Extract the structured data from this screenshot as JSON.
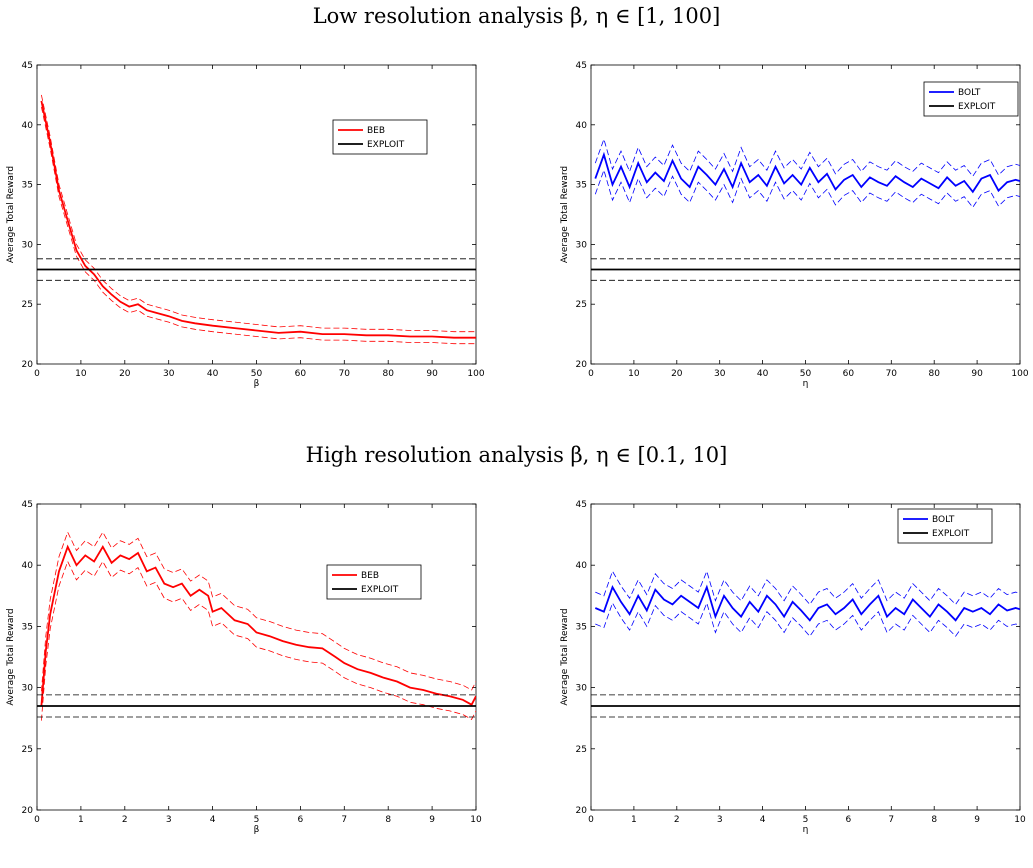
{
  "titles": {
    "top": "Low resolution analysis β, η ∈ [1, 100]",
    "bottom": "High resolution analysis β, η ∈ [0.1, 10]"
  },
  "chart_data": [
    {
      "type": "line",
      "xlabel": "β",
      "ylabel": "Average Total Reward",
      "xlim": [
        0,
        100
      ],
      "ylim": [
        20,
        45
      ],
      "xticks": [
        0,
        10,
        20,
        30,
        40,
        50,
        60,
        70,
        80,
        90,
        100
      ],
      "yticks": [
        20,
        25,
        30,
        35,
        40,
        45
      ],
      "legend_position": "right-upper",
      "series": [
        {
          "name": "BEB",
          "color": "#ff0000",
          "band": 0.5,
          "x": [
            1,
            3,
            5,
            7,
            9,
            11,
            13,
            15,
            17,
            19,
            21,
            23,
            25,
            27,
            30,
            33,
            36,
            40,
            45,
            50,
            55,
            60,
            65,
            70,
            75,
            80,
            85,
            90,
            95,
            100
          ],
          "y": [
            42,
            38.5,
            34.5,
            32,
            29.5,
            28.2,
            27.5,
            26.5,
            25.8,
            25.2,
            24.8,
            25,
            24.5,
            24.3,
            24,
            23.6,
            23.4,
            23.2,
            23,
            22.8,
            22.6,
            22.7,
            22.5,
            22.5,
            22.4,
            22.4,
            22.3,
            22.3,
            22.2,
            22.2
          ]
        },
        {
          "name": "EXPLOIT",
          "color": "#000000",
          "band": 0.9,
          "x": [
            0,
            100
          ],
          "y": [
            27.9,
            27.9
          ]
        }
      ]
    },
    {
      "type": "line",
      "xlabel": "η",
      "ylabel": "Average Total Reward",
      "xlim": [
        0,
        100
      ],
      "ylim": [
        20,
        45
      ],
      "xticks": [
        0,
        10,
        20,
        30,
        40,
        50,
        60,
        70,
        80,
        90,
        100
      ],
      "yticks": [
        20,
        25,
        30,
        35,
        40,
        45
      ],
      "legend_position": "top-right",
      "series": [
        {
          "name": "BOLT",
          "color": "#0000ff",
          "band": 1.3,
          "x": [
            1,
            3,
            5,
            7,
            9,
            11,
            13,
            15,
            17,
            19,
            21,
            23,
            25,
            27,
            29,
            31,
            33,
            35,
            37,
            39,
            41,
            43,
            45,
            47,
            49,
            51,
            53,
            55,
            57,
            59,
            61,
            63,
            65,
            67,
            69,
            71,
            73,
            75,
            77,
            79,
            81,
            83,
            85,
            87,
            89,
            91,
            93,
            95,
            97,
            99,
            100
          ],
          "y": [
            35.5,
            37.5,
            35,
            36.5,
            34.8,
            36.8,
            35.2,
            36,
            35.3,
            37,
            35.5,
            34.8,
            36.5,
            35.8,
            35,
            36.3,
            34.8,
            36.8,
            35.2,
            35.8,
            34.9,
            36.5,
            35.1,
            35.8,
            35,
            36.4,
            35.2,
            35.9,
            34.6,
            35.4,
            35.8,
            34.8,
            35.6,
            35.2,
            34.9,
            35.7,
            35.2,
            34.8,
            35.5,
            35.1,
            34.7,
            35.6,
            34.9,
            35.3,
            34.4,
            35.5,
            35.8,
            34.5,
            35.2,
            35.4,
            35.3
          ]
        },
        {
          "name": "EXPLOIT",
          "color": "#000000",
          "band": 0.9,
          "x": [
            0,
            100
          ],
          "y": [
            27.9,
            27.9
          ]
        }
      ]
    },
    {
      "type": "line",
      "xlabel": "β",
      "ylabel": "Average Total Reward",
      "xlim": [
        0,
        10
      ],
      "ylim": [
        20,
        45
      ],
      "xticks": [
        0,
        1,
        2,
        3,
        4,
        5,
        6,
        7,
        8,
        9,
        10
      ],
      "yticks": [
        20,
        25,
        30,
        35,
        40,
        45
      ],
      "legend_position": "right-upper",
      "series": [
        {
          "name": "BEB",
          "color": "#ff0000",
          "band": 1.2,
          "x": [
            0.1,
            0.2,
            0.3,
            0.5,
            0.7,
            0.9,
            1.1,
            1.3,
            1.5,
            1.7,
            1.9,
            2.1,
            2.3,
            2.5,
            2.7,
            2.9,
            3.1,
            3.3,
            3.5,
            3.7,
            3.9,
            4.0,
            4.2,
            4.5,
            4.8,
            5.0,
            5.3,
            5.6,
            5.9,
            6.2,
            6.5,
            6.8,
            7.0,
            7.3,
            7.6,
            7.9,
            8.2,
            8.5,
            8.8,
            9.1,
            9.4,
            9.7,
            9.9,
            10
          ],
          "y": [
            28.5,
            33,
            36,
            39.5,
            41.5,
            40,
            40.8,
            40.3,
            41.5,
            40.2,
            40.8,
            40.5,
            41,
            39.5,
            39.8,
            38.5,
            38.2,
            38.5,
            37.5,
            38,
            37.5,
            36.2,
            36.5,
            35.5,
            35.2,
            34.5,
            34.2,
            33.8,
            33.5,
            33.3,
            33.2,
            32.5,
            32,
            31.5,
            31.2,
            30.8,
            30.5,
            30,
            29.8,
            29.5,
            29.3,
            29,
            28.6,
            29.3
          ]
        },
        {
          "name": "EXPLOIT",
          "color": "#000000",
          "band": 0.9,
          "x": [
            0,
            10
          ],
          "y": [
            28.5,
            28.5
          ]
        }
      ]
    },
    {
      "type": "line",
      "xlabel": "η",
      "ylabel": "Average Total Reward",
      "xlim": [
        0,
        10
      ],
      "ylim": [
        20,
        45
      ],
      "xticks": [
        0,
        1,
        2,
        3,
        4,
        5,
        6,
        7,
        8,
        9,
        10
      ],
      "yticks": [
        20,
        25,
        30,
        35,
        40,
        45
      ],
      "legend_position": "top-right",
      "series": [
        {
          "name": "BOLT",
          "color": "#0000ff",
          "band": 1.3,
          "x": [
            0.1,
            0.3,
            0.5,
            0.7,
            0.9,
            1.1,
            1.3,
            1.5,
            1.7,
            1.9,
            2.1,
            2.3,
            2.5,
            2.7,
            2.9,
            3.1,
            3.3,
            3.5,
            3.7,
            3.9,
            4.1,
            4.3,
            4.5,
            4.7,
            4.9,
            5.1,
            5.3,
            5.5,
            5.7,
            5.9,
            6.1,
            6.3,
            6.5,
            6.7,
            6.9,
            7.1,
            7.3,
            7.5,
            7.7,
            7.9,
            8.1,
            8.3,
            8.5,
            8.7,
            8.9,
            9.1,
            9.3,
            9.5,
            9.7,
            9.9,
            10
          ],
          "y": [
            36.5,
            36.2,
            38.2,
            37,
            36,
            37.5,
            36.3,
            38,
            37.2,
            36.8,
            37.5,
            37,
            36.5,
            38.2,
            35.8,
            37.5,
            36.5,
            35.8,
            37,
            36.2,
            37.5,
            36.8,
            35.8,
            37,
            36.3,
            35.5,
            36.5,
            36.8,
            36,
            36.5,
            37.2,
            36,
            36.8,
            37.5,
            35.8,
            36.5,
            36,
            37.2,
            36.5,
            35.8,
            36.8,
            36.2,
            35.5,
            36.5,
            36.2,
            36.5,
            36,
            36.8,
            36.3,
            36.5,
            36.4
          ]
        },
        {
          "name": "EXPLOIT",
          "color": "#000000",
          "band": 0.9,
          "x": [
            0,
            10
          ],
          "y": [
            28.5,
            28.5
          ]
        }
      ]
    }
  ]
}
